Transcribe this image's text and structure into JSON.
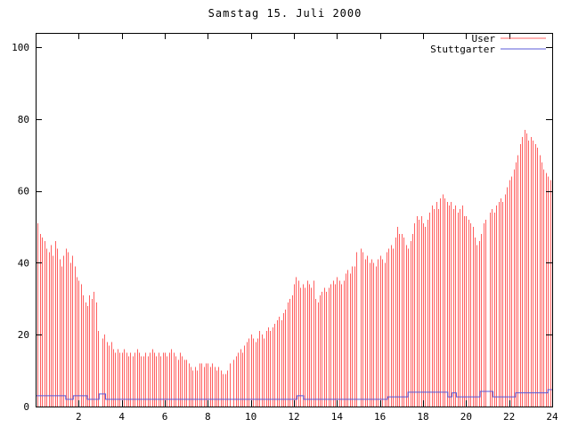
{
  "title": "Samstag 15. Juli 2000",
  "colors": {
    "user": "#ff6060",
    "stuttgarter": "#5858d8",
    "axis": "#000000",
    "background": "#ffffff"
  },
  "legend": {
    "position": "top-right-inside",
    "entries": [
      {
        "label": "User",
        "color": "#ff6060",
        "style": "line"
      },
      {
        "label": "Stuttgarter",
        "color": "#5858d8",
        "style": "line"
      }
    ]
  },
  "chart_data": {
    "type": "bar",
    "title": "Samstag 15. Juli 2000",
    "xlabel": "",
    "ylabel": "",
    "xlim": [
      0,
      24
    ],
    "ylim": [
      0,
      104
    ],
    "x_tick_labels": [
      2,
      4,
      6,
      8,
      10,
      12,
      14,
      16,
      18,
      20,
      22,
      24
    ],
    "y_tick_labels": [
      0,
      20,
      40,
      60,
      80,
      100
    ],
    "grid": false,
    "legend_position": "top-right-inside",
    "series": [
      {
        "name": "User",
        "type": "impulses",
        "color": "#ff6060",
        "x_start": 0,
        "x_step": 0.1,
        "note": "value 0 means missing sample (gaps near 03:00, 09:10, 15:00, 21:00)",
        "values": [
          54,
          51,
          48,
          47,
          46,
          44,
          43,
          45,
          42,
          46,
          44,
          41,
          39,
          42,
          44,
          43,
          40,
          42,
          39,
          36,
          35,
          34,
          31,
          29,
          28,
          31,
          30,
          32,
          29,
          21,
          0,
          19,
          20,
          18,
          17,
          18,
          16,
          15,
          16,
          15,
          15,
          16,
          15,
          14,
          15,
          14,
          15,
          16,
          15,
          14,
          14,
          15,
          14,
          15,
          16,
          15,
          14,
          15,
          14,
          15,
          15,
          14,
          15,
          16,
          15,
          14,
          13,
          15,
          14,
          13,
          13,
          12,
          11,
          10,
          11,
          10,
          12,
          12,
          11,
          12,
          12,
          11,
          12,
          11,
          10,
          11,
          10,
          9,
          9,
          10,
          12,
          0,
          13,
          14,
          15,
          16,
          15,
          17,
          18,
          19,
          20,
          19,
          18,
          19,
          21,
          20,
          19,
          21,
          22,
          21,
          22,
          23,
          24,
          25,
          24,
          26,
          27,
          29,
          30,
          31,
          34,
          36,
          35,
          33,
          34,
          33,
          35,
          34,
          33,
          35,
          30,
          29,
          31,
          32,
          33,
          32,
          33,
          34,
          35,
          34,
          36,
          35,
          34,
          35,
          37,
          38,
          37,
          39,
          39,
          43,
          0,
          44,
          43,
          41,
          42,
          40,
          41,
          40,
          39,
          41,
          42,
          41,
          40,
          43,
          44,
          45,
          44,
          47,
          50,
          48,
          48,
          47,
          45,
          44,
          46,
          48,
          51,
          53,
          52,
          53,
          51,
          50,
          52,
          54,
          56,
          55,
          57,
          55,
          58,
          59,
          58,
          57,
          56,
          57,
          55,
          56,
          54,
          55,
          56,
          53,
          53,
          52,
          51,
          50,
          47,
          45,
          46,
          48,
          51,
          52,
          0,
          54,
          55,
          54,
          56,
          57,
          58,
          57,
          59,
          61,
          63,
          64,
          66,
          68,
          70,
          73,
          75,
          77,
          76,
          74,
          75,
          74,
          73,
          72,
          70,
          68,
          66,
          65,
          64,
          63,
          63
        ]
      },
      {
        "name": "Stuttgarter",
        "type": "step-line",
        "color": "#5858d8",
        "segments": [
          {
            "from": 0.0,
            "to": 1.4,
            "value": 3.0
          },
          {
            "from": 1.4,
            "to": 1.75,
            "value": 2.0
          },
          {
            "from": 1.75,
            "to": 2.4,
            "value": 3.0
          },
          {
            "from": 2.4,
            "to": 2.95,
            "value": 2.0
          },
          {
            "from": 2.95,
            "to": 3.25,
            "value": 3.5
          },
          {
            "from": 3.25,
            "to": 12.15,
            "value": 2.0
          },
          {
            "from": 12.15,
            "to": 12.45,
            "value": 3.0
          },
          {
            "from": 12.45,
            "to": 16.35,
            "value": 2.0
          },
          {
            "from": 16.35,
            "to": 17.3,
            "value": 2.7
          },
          {
            "from": 17.3,
            "to": 19.15,
            "value": 4.0
          },
          {
            "from": 19.15,
            "to": 19.35,
            "value": 2.7
          },
          {
            "from": 19.35,
            "to": 19.55,
            "value": 3.8
          },
          {
            "from": 19.55,
            "to": 20.65,
            "value": 2.7
          },
          {
            "from": 20.65,
            "to": 21.25,
            "value": 4.2
          },
          {
            "from": 21.25,
            "to": 22.3,
            "value": 2.7
          },
          {
            "from": 22.3,
            "to": 23.8,
            "value": 3.8
          },
          {
            "from": 23.8,
            "to": 24.0,
            "value": 4.7
          }
        ]
      }
    ]
  }
}
